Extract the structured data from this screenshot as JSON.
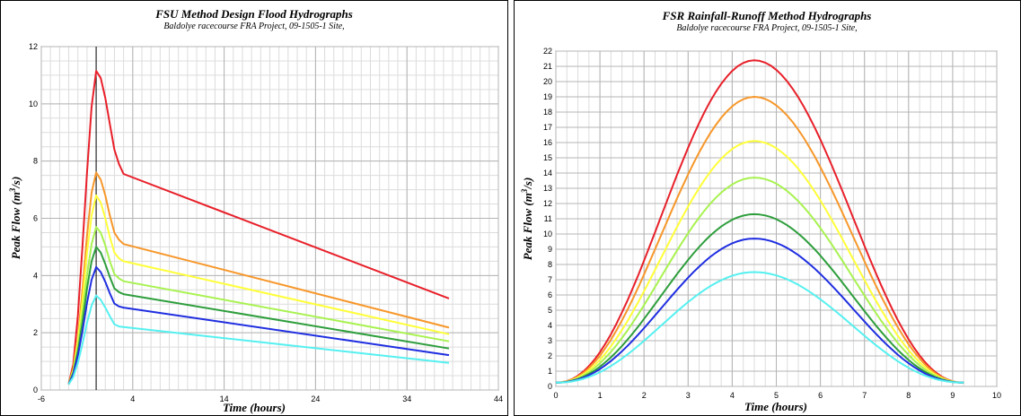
{
  "chart_data": [
    {
      "type": "line",
      "title": "FSU Method Design Flood Hydrographs",
      "subtitle": "Baldolye racecourse FRA Project, 09-1505-1 Site,",
      "xlabel": "Time (hours)",
      "ylabel_main": "Peak Flow (m",
      "ylabel_sup": "3",
      "ylabel_tail": "/s)",
      "xlim": [
        -6,
        44
      ],
      "ylim": [
        0,
        12
      ],
      "xticks": [
        -6,
        4,
        14,
        24,
        34,
        44
      ],
      "yticks": [
        0,
        2,
        4,
        6,
        8,
        10,
        12
      ],
      "xminor": 1,
      "yminor": 0.5,
      "vline": 0,
      "grid": true,
      "x": [
        -3,
        -2.5,
        -2,
        -1.5,
        -1,
        -0.5,
        0,
        0.5,
        1,
        1.5,
        2,
        2.5,
        3,
        38.6
      ],
      "series": [
        {
          "color": "#e8202a",
          "values": [
            0.22,
            0.9,
            2.6,
            5.0,
            7.6,
            9.9,
            11.15,
            10.9,
            10.2,
            9.3,
            8.4,
            7.9,
            7.55,
            3.2
          ]
        },
        {
          "color": "#f7972a",
          "values": [
            0.2,
            0.75,
            1.85,
            3.5,
            5.4,
            6.9,
            7.6,
            7.35,
            6.8,
            6.1,
            5.5,
            5.25,
            5.1,
            2.18
          ]
        },
        {
          "color": "#ffff3a",
          "values": [
            0.2,
            0.7,
            1.7,
            3.1,
            4.8,
            6.1,
            6.8,
            6.55,
            6.0,
            5.35,
            4.8,
            4.6,
            4.5,
            1.95
          ]
        },
        {
          "color": "#a8f250",
          "values": [
            0.2,
            0.65,
            1.5,
            2.7,
            4.0,
            5.1,
            5.7,
            5.5,
            5.05,
            4.5,
            4.05,
            3.9,
            3.8,
            1.7
          ]
        },
        {
          "color": "#2e9e3c",
          "values": [
            0.2,
            0.6,
            1.35,
            2.35,
            3.55,
            4.5,
            5.0,
            4.8,
            4.4,
            3.95,
            3.55,
            3.42,
            3.35,
            1.45
          ]
        },
        {
          "color": "#1f2ee0",
          "values": [
            0.2,
            0.55,
            1.2,
            2.05,
            3.05,
            3.85,
            4.3,
            4.12,
            3.78,
            3.38,
            3.02,
            2.92,
            2.88,
            1.22
          ]
        },
        {
          "color": "#55f0f0",
          "values": [
            0.2,
            0.45,
            0.95,
            1.6,
            2.35,
            2.95,
            3.3,
            3.15,
            2.88,
            2.58,
            2.3,
            2.22,
            2.2,
            0.95
          ]
        }
      ]
    },
    {
      "type": "line",
      "title": "FSR Rainfall-Runoff Method Hydrographs",
      "subtitle": "Baldolye racecourse FRA Project, 09-1505-1 Site,",
      "xlabel": "Time (hours)",
      "ylabel_main": "Peak Flow (m",
      "ylabel_sup": "3",
      "ylabel_tail": "/s)",
      "xlim": [
        0,
        10
      ],
      "ylim": [
        0,
        22
      ],
      "xticks": [
        0,
        1,
        2,
        3,
        4,
        5,
        6,
        7,
        8,
        9,
        10
      ],
      "yticks": [
        0,
        1,
        2,
        3,
        4,
        5,
        6,
        7,
        8,
        9,
        10,
        11,
        12,
        13,
        14,
        15,
        16,
        17,
        18,
        19,
        20,
        21,
        22
      ],
      "xminor": 0.25,
      "yminor": 0,
      "grid": true,
      "peak_x": 4.5,
      "series": [
        {
          "color": "#e8202a",
          "peak": 21.4
        },
        {
          "color": "#f7972a",
          "peak": 19.0
        },
        {
          "color": "#ffff3a",
          "peak": 16.1
        },
        {
          "color": "#a8f250",
          "peak": 13.7
        },
        {
          "color": "#2e9e3c",
          "peak": 11.3
        },
        {
          "color": "#1f2ee0",
          "peak": 9.7
        },
        {
          "color": "#55f0f0",
          "peak": 7.5
        }
      ]
    }
  ]
}
